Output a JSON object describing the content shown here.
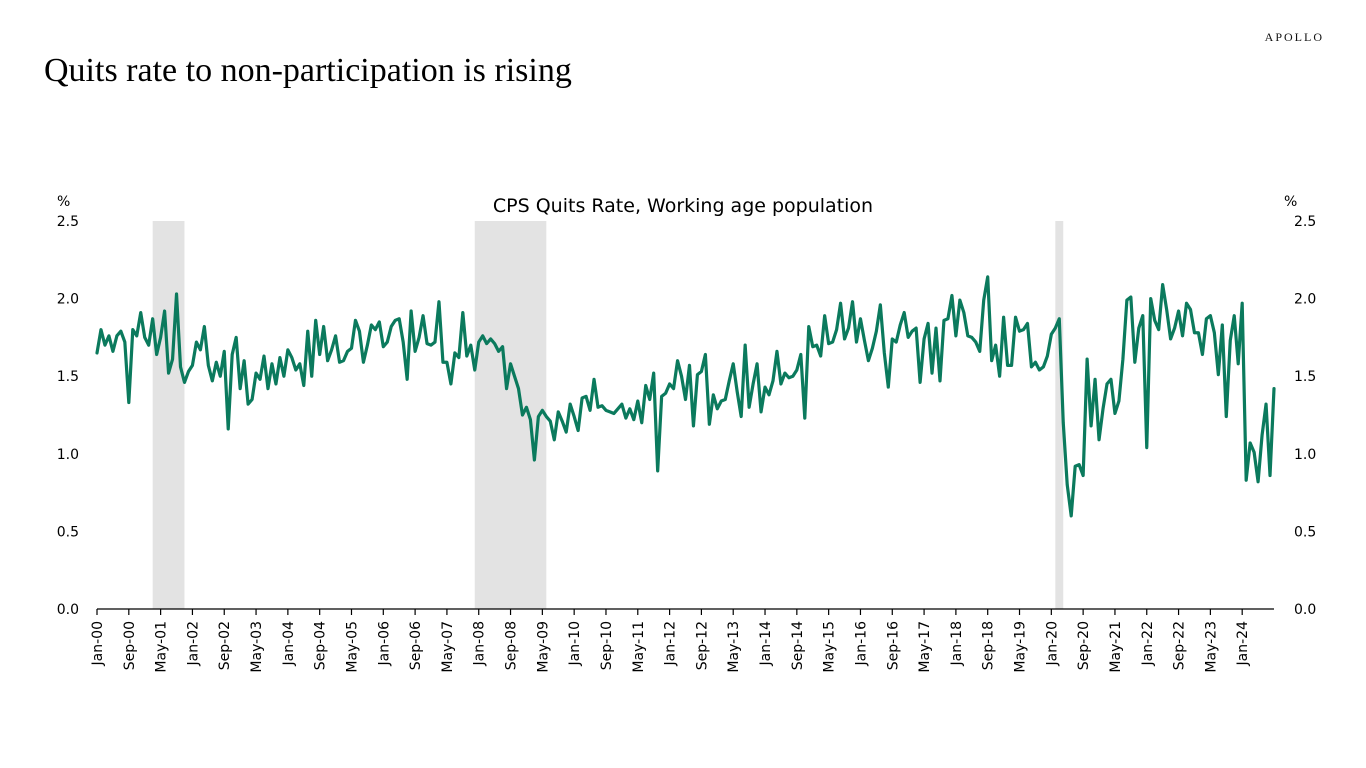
{
  "header": {
    "brand": "APOLLO",
    "headline": "Quits rate to non-participation is rising"
  },
  "colors": {
    "series": "#0b7a5d",
    "recession": "#e3e3e3",
    "axis": "#000000"
  },
  "chart_data": {
    "type": "line",
    "title": "CPS Quits Rate, Working age population",
    "ylabel_left": "%",
    "ylabel_right": "%",
    "ylim": [
      0,
      2.5
    ],
    "yticks": [
      0.0,
      0.5,
      1.0,
      1.5,
      2.0,
      2.5
    ],
    "ytick_labels": [
      "0.0",
      "0.5",
      "1.0",
      "1.5",
      "2.0",
      "2.5"
    ],
    "x_start": "Jan-00",
    "x_end": "Oct-24",
    "x_tick_labels": [
      "Jan-00",
      "Sep-00",
      "May-01",
      "Jan-02",
      "Sep-02",
      "May-03",
      "Jan-04",
      "Sep-04",
      "May-05",
      "Jan-06",
      "Sep-06",
      "May-07",
      "Jan-08",
      "Sep-08",
      "May-09",
      "Jan-10",
      "Sep-10",
      "May-11",
      "Jan-12",
      "Sep-12",
      "May-13",
      "Jan-14",
      "Sep-14",
      "May-15",
      "Jan-16",
      "Sep-16",
      "May-17",
      "Jan-18",
      "Sep-18",
      "May-19",
      "Jan-20",
      "Sep-20",
      "May-21",
      "Jan-22",
      "Sep-22",
      "May-23",
      "Jan-24"
    ],
    "recessions": [
      {
        "start": "Mar-01",
        "end": "Nov-01"
      },
      {
        "start": "Dec-07",
        "end": "Jun-09"
      },
      {
        "start": "Feb-20",
        "end": "Apr-20"
      }
    ],
    "series": [
      {
        "name": "CPS Quits Rate, Working age population",
        "values": [
          1.65,
          1.8,
          1.7,
          1.76,
          1.66,
          1.76,
          1.79,
          1.72,
          1.33,
          1.8,
          1.76,
          1.91,
          1.75,
          1.7,
          1.87,
          1.64,
          1.75,
          1.92,
          1.52,
          1.61,
          2.03,
          1.56,
          1.46,
          1.53,
          1.57,
          1.72,
          1.67,
          1.82,
          1.57,
          1.47,
          1.59,
          1.5,
          1.66,
          1.16,
          1.64,
          1.75,
          1.42,
          1.6,
          1.32,
          1.35,
          1.52,
          1.48,
          1.63,
          1.42,
          1.58,
          1.45,
          1.62,
          1.5,
          1.67,
          1.62,
          1.54,
          1.58,
          1.44,
          1.79,
          1.5,
          1.86,
          1.64,
          1.82,
          1.6,
          1.67,
          1.76,
          1.59,
          1.6,
          1.66,
          1.68,
          1.86,
          1.79,
          1.59,
          1.7,
          1.83,
          1.8,
          1.85,
          1.69,
          1.72,
          1.82,
          1.86,
          1.87,
          1.72,
          1.48,
          1.92,
          1.66,
          1.75,
          1.89,
          1.71,
          1.7,
          1.72,
          1.98,
          1.59,
          1.59,
          1.45,
          1.65,
          1.62,
          1.91,
          1.63,
          1.7,
          1.54,
          1.72,
          1.76,
          1.71,
          1.74,
          1.71,
          1.66,
          1.69,
          1.42,
          1.58,
          1.5,
          1.42,
          1.25,
          1.3,
          1.22,
          0.96,
          1.24,
          1.28,
          1.24,
          1.21,
          1.09,
          1.27,
          1.21,
          1.14,
          1.32,
          1.24,
          1.15,
          1.36,
          1.37,
          1.28,
          1.48,
          1.3,
          1.31,
          1.28,
          1.27,
          1.26,
          1.29,
          1.32,
          1.23,
          1.29,
          1.22,
          1.34,
          1.2,
          1.44,
          1.35,
          1.52,
          0.89,
          1.37,
          1.39,
          1.45,
          1.42,
          1.6,
          1.5,
          1.35,
          1.57,
          1.18,
          1.51,
          1.53,
          1.64,
          1.19,
          1.38,
          1.29,
          1.34,
          1.35,
          1.47,
          1.58,
          1.4,
          1.24,
          1.7,
          1.3,
          1.45,
          1.58,
          1.27,
          1.43,
          1.38,
          1.47,
          1.66,
          1.45,
          1.52,
          1.49,
          1.5,
          1.54,
          1.64,
          1.23,
          1.82,
          1.69,
          1.7,
          1.63,
          1.89,
          1.71,
          1.72,
          1.8,
          1.97,
          1.74,
          1.81,
          1.98,
          1.72,
          1.87,
          1.73,
          1.6,
          1.68,
          1.79,
          1.96,
          1.65,
          1.43,
          1.74,
          1.72,
          1.83,
          1.91,
          1.75,
          1.79,
          1.81,
          1.46,
          1.74,
          1.84,
          1.52,
          1.81,
          1.47,
          1.86,
          1.87,
          2.02,
          1.76,
          1.99,
          1.91,
          1.76,
          1.75,
          1.72,
          1.66,
          1.99,
          2.14,
          1.6,
          1.7,
          1.5,
          1.88,
          1.57,
          1.57,
          1.88,
          1.79,
          1.8,
          1.84,
          1.56,
          1.59,
          1.54,
          1.56,
          1.63,
          1.77,
          1.81,
          1.87,
          1.2,
          0.8,
          0.6,
          0.92,
          0.93,
          0.86,
          1.61,
          1.18,
          1.48,
          1.09,
          1.29,
          1.45,
          1.48,
          1.26,
          1.34,
          1.61,
          1.99,
          2.01,
          1.59,
          1.81,
          1.89,
          1.04,
          2.0,
          1.86,
          1.8,
          2.09,
          1.93,
          1.74,
          1.81,
          1.92,
          1.76,
          1.97,
          1.93,
          1.78,
          1.78,
          1.64,
          1.87,
          1.89,
          1.78,
          1.51,
          1.83,
          1.24,
          1.73,
          1.89,
          1.58,
          1.97,
          0.83,
          1.07,
          1.01,
          0.82,
          1.12,
          1.32,
          0.86,
          1.42
        ]
      }
    ]
  }
}
